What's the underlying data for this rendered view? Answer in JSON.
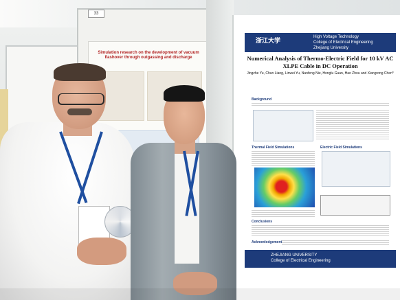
{
  "scene": {
    "poster_right": {
      "institution_logo_text": "浙江大学",
      "institution_lines": [
        "High Voltage Technology",
        "College of Electrical Engineering",
        "Zhejiang University"
      ],
      "title": "Numerical Analysis of Thermo-Electric Field for 10 kV AC XLPE Cable in DC Operation",
      "authors": "Jingzhe Yu, Chun Liang, Linwei Yu, Nanfeng Nie, Honglu Guan, Hao Zhou and Xiangrong Chen*",
      "sections": [
        "Background",
        "Thermal Field Simulations",
        "Electric Field Simulations",
        "Conclusions",
        "Acknowledgement"
      ],
      "footer_university": "ZHEJIANG UNIVERSITY",
      "footer_college": "College of Electrical Engineering"
    },
    "poster_mid": {
      "title": "Simulation research on the development of vacuum flashover through outgassing and discharge",
      "board_tag": "33"
    }
  }
}
